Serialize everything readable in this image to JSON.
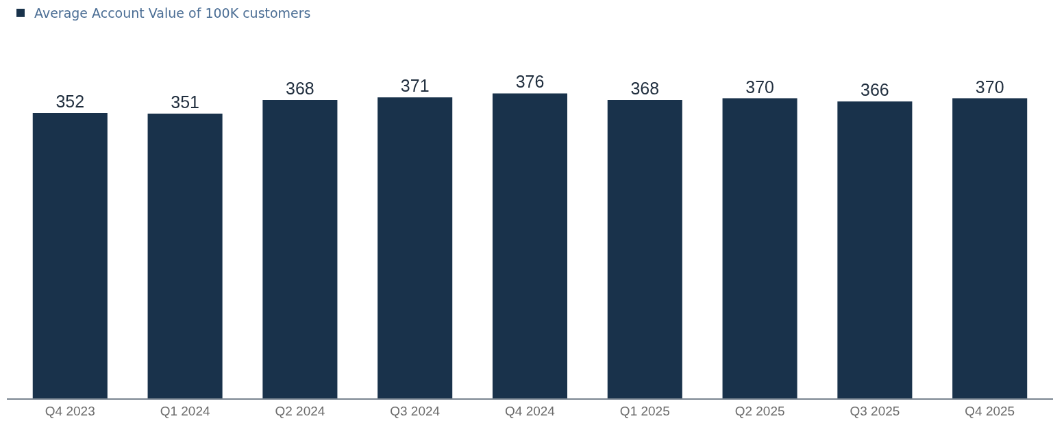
{
  "chart_data": {
    "type": "bar",
    "categories": [
      "Q4 2023",
      "Q1 2024",
      "Q2 2024",
      "Q3 2024",
      "Q4 2024",
      "Q1 2025",
      "Q2 2025",
      "Q3 2025",
      "Q4 2025"
    ],
    "series": [
      {
        "name": "Average Account Value of 100K customers",
        "color": "#19324b",
        "values": [
          352,
          351,
          368,
          371,
          376,
          368,
          370,
          366,
          370
        ]
      }
    ],
    "data_labels": true,
    "grid": false,
    "legend": "top left",
    "tick_labels": "x"
  }
}
